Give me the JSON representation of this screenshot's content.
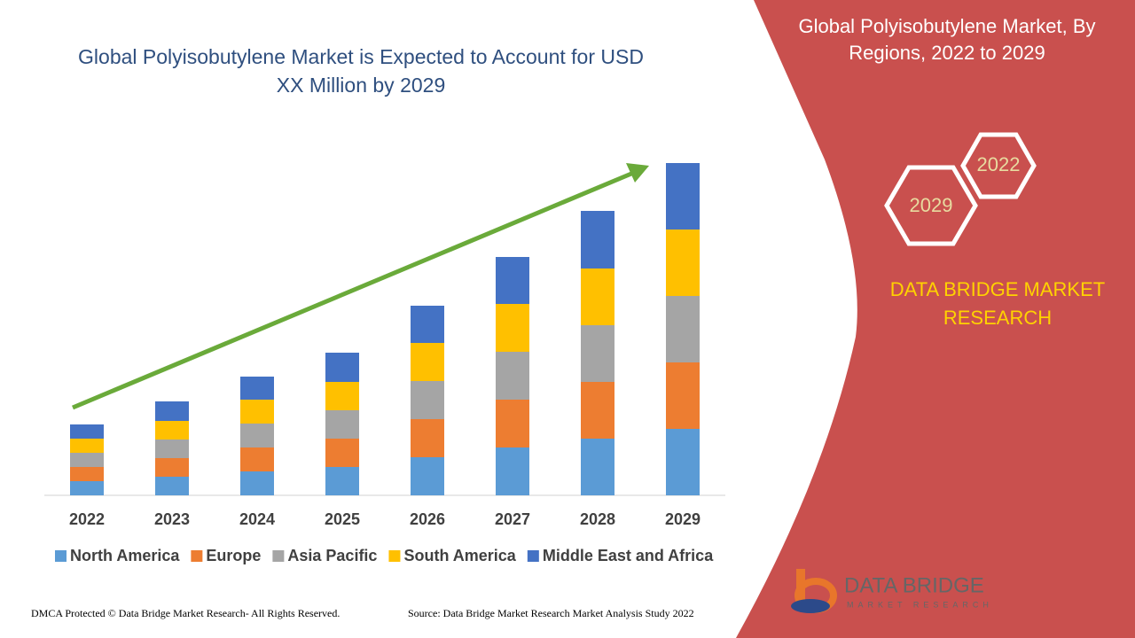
{
  "chart_data": {
    "type": "stacked-bar",
    "title": "Global Polyisobutylene Market is Expected to Account for USD XX Million by 2029",
    "categories": [
      "2022",
      "2023",
      "2024",
      "2025",
      "2026",
      "2027",
      "2028",
      "2029"
    ],
    "series": [
      {
        "name": "North America",
        "color": "#5b9bd5",
        "values": [
          16,
          21,
          27,
          32,
          43,
          54,
          64,
          75
        ]
      },
      {
        "name": "Europe",
        "color": "#ed7d31",
        "values": [
          16,
          21,
          27,
          32,
          43,
          54,
          64,
          75
        ]
      },
      {
        "name": "Asia Pacific",
        "color": "#a5a5a5",
        "values": [
          16,
          21,
          27,
          32,
          43,
          54,
          64,
          75
        ]
      },
      {
        "name": "South America",
        "color": "#ffc000",
        "values": [
          16,
          21,
          27,
          32,
          43,
          54,
          64,
          75
        ]
      },
      {
        "name": "Middle East and Africa",
        "color": "#4472c4",
        "values": [
          16,
          22,
          26,
          33,
          42,
          53,
          65,
          75
        ]
      }
    ],
    "ylim": [
      0,
      400
    ]
  },
  "panel": {
    "title": "Global Polyisobutylene Market, By Regions, 2022 to 2029",
    "hex_labels": [
      "2022",
      "2029"
    ],
    "brand": "DATA BRIDGE MARKET RESEARCH"
  },
  "logo": {
    "name": "DATA BRIDGE",
    "tagline": "MARKET RESEARCH"
  },
  "footer": {
    "left": "DMCA Protected © Data Bridge Market Research- All Rights Reserved.",
    "right": "Source: Data Bridge Market Research Market Analysis Study 2022"
  }
}
